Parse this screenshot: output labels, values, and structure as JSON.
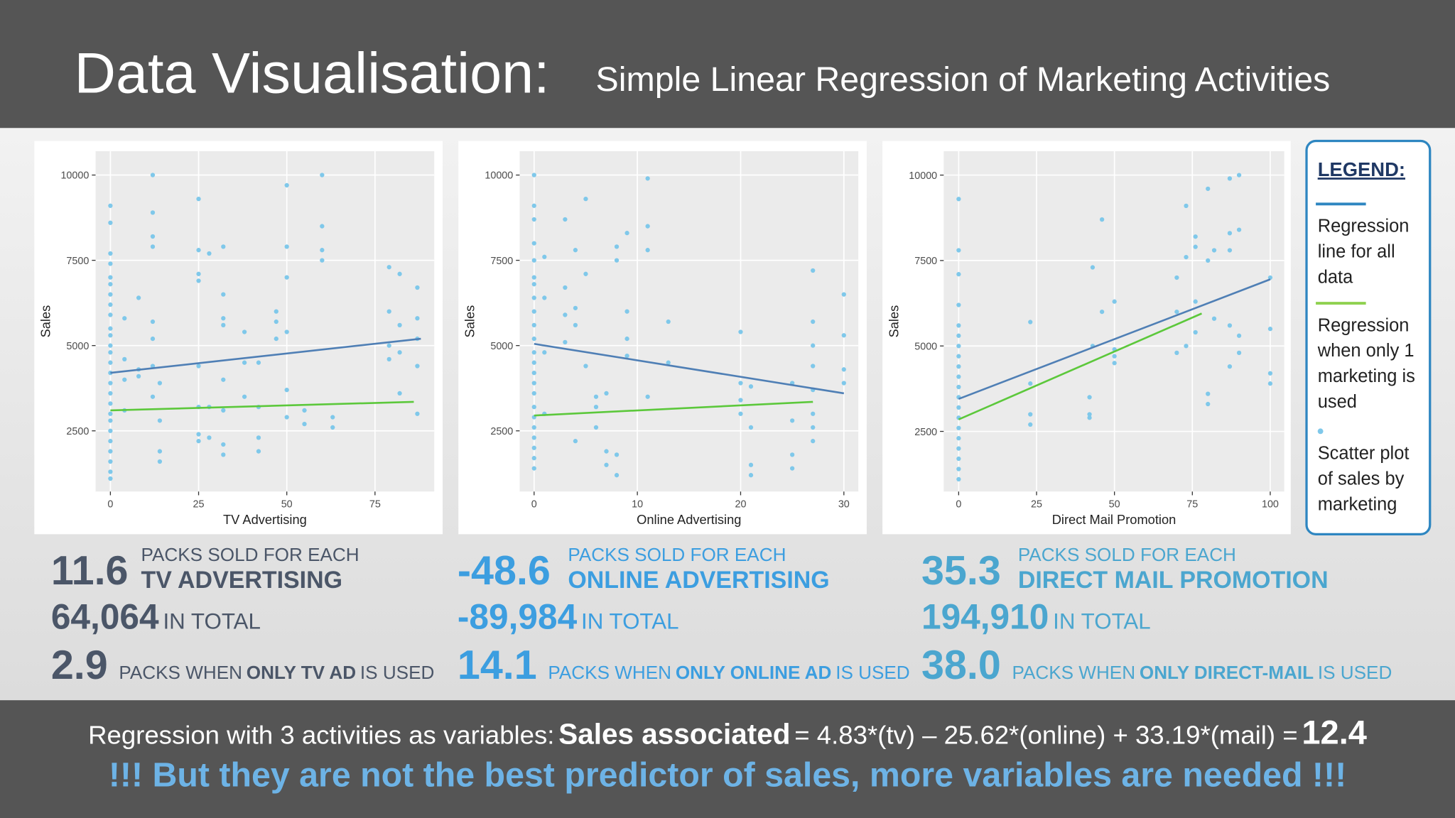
{
  "header": {
    "title": "Data Visualisation:",
    "subtitle": "Simple Linear Regression of Marketing Activities"
  },
  "chart_data": [
    {
      "type": "scatter",
      "x_label": "TV Advertising",
      "y_label": "Sales",
      "color": "#7fc8ea",
      "grid": true,
      "xlim": [
        -4.2,
        91.8
      ],
      "ylim": [
        720,
        10700
      ],
      "xticks": [
        0,
        25,
        50,
        75
      ],
      "yticks": [
        2500,
        5000,
        7500,
        10000
      ],
      "x": [
        0,
        0,
        0,
        0,
        0,
        0,
        0,
        0,
        0,
        0,
        0,
        0,
        0,
        0,
        0,
        0,
        0,
        0,
        0,
        0,
        0,
        0,
        0,
        0,
        0,
        0,
        4,
        4,
        4,
        4,
        8,
        8,
        8,
        12,
        12,
        12,
        12,
        12,
        12,
        12,
        12,
        14,
        14,
        14,
        14,
        25,
        25,
        25,
        25,
        25,
        25,
        25,
        25,
        28,
        28,
        28,
        32,
        32,
        32,
        32,
        32,
        32,
        32,
        32,
        38,
        38,
        38,
        42,
        42,
        42,
        42,
        47,
        47,
        47,
        50,
        50,
        50,
        50,
        50,
        50,
        55,
        55,
        60,
        60,
        60,
        60,
        63,
        63,
        79,
        79,
        79,
        79,
        82,
        82,
        82,
        82,
        87,
        87,
        87,
        87,
        87
      ],
      "values": [
        9100,
        8600,
        7700,
        7400,
        7000,
        6800,
        6500,
        6200,
        5900,
        5500,
        5300,
        5000,
        4800,
        4500,
        4200,
        3900,
        3600,
        3300,
        3000,
        2800,
        2500,
        2200,
        1900,
        1600,
        1300,
        1100,
        5800,
        4600,
        4000,
        3100,
        6400,
        4300,
        4100,
        10000,
        8900,
        8200,
        7900,
        5700,
        5200,
        4400,
        3500,
        3900,
        2800,
        1900,
        1600,
        9300,
        7800,
        7100,
        6900,
        4400,
        3200,
        2400,
        2200,
        7700,
        3200,
        2300,
        7900,
        6500,
        5800,
        5600,
        4000,
        3100,
        2100,
        1800,
        5400,
        4500,
        3500,
        4500,
        3200,
        2300,
        1900,
        6000,
        5700,
        5200,
        9700,
        7900,
        7000,
        5400,
        3700,
        2900,
        3100,
        2700,
        10000,
        8500,
        7800,
        7500,
        2900,
        2600,
        7300,
        6000,
        5000,
        4600,
        7100,
        5600,
        4800,
        3600,
        6700,
        5800,
        5200,
        4400,
        3000
      ],
      "lines": [
        {
          "color": "#4f7fb5",
          "x": [
            0,
            88
          ],
          "values": [
            4200,
            5200
          ]
        },
        {
          "color": "#5cc83b",
          "x": [
            0,
            86
          ],
          "values": [
            3100,
            3350
          ]
        }
      ]
    },
    {
      "type": "scatter",
      "x_label": "Online Advertising",
      "y_label": "Sales",
      "color": "#7fc8ea",
      "grid": true,
      "xlim": [
        -1.4,
        31.4
      ],
      "ylim": [
        720,
        10700
      ],
      "xticks": [
        0,
        10,
        20,
        30
      ],
      "yticks": [
        2500,
        5000,
        7500,
        10000
      ],
      "x": [
        0,
        0,
        0,
        0,
        0,
        0,
        0,
        0,
        0,
        0,
        0,
        0,
        0,
        0,
        0,
        0,
        0,
        0,
        0,
        0,
        0,
        0,
        0,
        1,
        1,
        1,
        1,
        3,
        3,
        3,
        3,
        4,
        4,
        4,
        4,
        5,
        5,
        5,
        6,
        6,
        6,
        7,
        7,
        7,
        8,
        8,
        8,
        8,
        9,
        9,
        9,
        9,
        11,
        11,
        11,
        11,
        13,
        13,
        20,
        20,
        20,
        20,
        21,
        21,
        21,
        21,
        25,
        25,
        25,
        25,
        27,
        27,
        27,
        27,
        27,
        27,
        27,
        27,
        30,
        30,
        30,
        30
      ],
      "values": [
        10000,
        9100,
        8700,
        8000,
        7500,
        7000,
        6800,
        6400,
        6000,
        5600,
        5200,
        4800,
        4500,
        4200,
        3900,
        3600,
        3200,
        2900,
        2600,
        2300,
        2000,
        1700,
        1400,
        7600,
        6400,
        4800,
        3000,
        8700,
        6700,
        5900,
        5100,
        7800,
        6100,
        5600,
        2200,
        9300,
        7100,
        4400,
        3500,
        3200,
        2600,
        3600,
        1900,
        1500,
        7900,
        7500,
        1800,
        1200,
        8300,
        6000,
        5200,
        4700,
        9900,
        8500,
        7800,
        3500,
        5700,
        4500,
        5400,
        3900,
        3400,
        3000,
        3800,
        2600,
        1500,
        1200,
        3900,
        2800,
        1800,
        1400,
        7200,
        5700,
        5000,
        4400,
        3700,
        3000,
        2600,
        2200,
        6500,
        5300,
        4300,
        3900
      ],
      "lines": [
        {
          "color": "#4f7fb5",
          "x": [
            0,
            30
          ],
          "values": [
            5050,
            3600
          ]
        },
        {
          "color": "#5cc83b",
          "x": [
            0,
            27
          ],
          "values": [
            2950,
            3350
          ]
        }
      ]
    },
    {
      "type": "scatter",
      "x_label": "Direct Mail Promotion",
      "y_label": "Sales",
      "color": "#7fc8ea",
      "grid": true,
      "xlim": [
        -4.8,
        104.5
      ],
      "ylim": [
        740,
        10700
      ],
      "xticks": [
        0,
        25,
        50,
        75,
        100
      ],
      "yticks": [
        2500,
        5000,
        7500,
        10000
      ],
      "x": [
        0,
        0,
        0,
        0,
        0,
        0,
        0,
        0,
        0,
        0,
        0,
        0,
        0,
        0,
        0,
        0,
        0,
        0,
        0,
        0,
        23,
        23,
        23,
        23,
        42,
        42,
        42,
        43,
        43,
        46,
        46,
        50,
        50,
        50,
        50,
        70,
        70,
        70,
        73,
        73,
        73,
        76,
        76,
        76,
        76,
        80,
        80,
        80,
        80,
        82,
        82,
        87,
        87,
        87,
        87,
        87,
        90,
        90,
        90,
        90,
        100,
        100,
        100,
        100
      ],
      "values": [
        9300,
        7800,
        7100,
        6200,
        5600,
        5300,
        5000,
        4700,
        4400,
        4100,
        3800,
        3500,
        3200,
        2900,
        2600,
        2300,
        2000,
        1700,
        1400,
        1100,
        5700,
        3900,
        3000,
        2700,
        3500,
        3000,
        2900,
        7300,
        5000,
        8700,
        6000,
        6300,
        4900,
        4700,
        4500,
        7000,
        6000,
        4800,
        9100,
        7600,
        5000,
        8200,
        7900,
        6300,
        5400,
        9600,
        7500,
        3600,
        3300,
        7800,
        5800,
        9900,
        8300,
        7800,
        5600,
        4400,
        10000,
        8400,
        5300,
        4800,
        7000,
        5500,
        4200,
        3900
      ],
      "lines": [
        {
          "color": "#4f7fb5",
          "x": [
            0,
            100
          ],
          "values": [
            3450,
            6950
          ]
        },
        {
          "color": "#5cc83b",
          "x": [
            0,
            78
          ],
          "values": [
            2850,
            5950
          ]
        }
      ]
    }
  ],
  "legend": {
    "title": "LEGEND:",
    "items": [
      {
        "kind": "line",
        "color": "#2e86c1",
        "lines": [
          "Regression",
          "line for all",
          "data"
        ]
      },
      {
        "kind": "line",
        "color": "#8fd14f",
        "lines": [
          "Regression",
          "when only 1",
          "marketing is",
          "used"
        ]
      },
      {
        "kind": "dot",
        "color": "#7fc8ea",
        "lines": [
          "Scatter plot",
          "of sales by",
          "marketing"
        ]
      }
    ]
  },
  "stats": [
    {
      "color": "#4b5668",
      "per_pack": "11.6",
      "per_pack_label": "PACKS SOLD FOR EACH",
      "activity": "TV ADVERTISING",
      "total": "64,064",
      "total_label": "IN TOTAL",
      "only": "2.9",
      "only_pre": "PACKS WHEN",
      "only_bold": "ONLY TV AD",
      "only_post": "IS USED"
    },
    {
      "color": "#3c9ee0",
      "per_pack": "-48.6",
      "per_pack_label": "PACKS SOLD FOR EACH",
      "activity": "ONLINE ADVERTISING",
      "total": "-89,984",
      "total_label": "IN TOTAL",
      "only": "14.1",
      "only_pre": "PACKS WHEN",
      "only_bold": "ONLY ONLINE AD",
      "only_post": "IS USED"
    },
    {
      "color": "#4ba6cf",
      "per_pack": "35.3",
      "per_pack_label": "PACKS SOLD FOR EACH",
      "activity": "DIRECT MAIL PROMOTION",
      "total": "194,910",
      "total_label": "IN TOTAL",
      "only": "38.0",
      "only_pre": "PACKS WHEN",
      "only_bold": "ONLY DIRECT-MAIL",
      "only_post": "IS USED"
    }
  ],
  "footer": {
    "line1": [
      "Regression with 3 activities as variables:",
      "Sales associated",
      "= 4.83*(tv) – 25.62*(online) + 33.19*(mail) =",
      "12.4"
    ],
    "line2": "!!! But they are not the best predictor of sales, more variables are needed !!!"
  }
}
